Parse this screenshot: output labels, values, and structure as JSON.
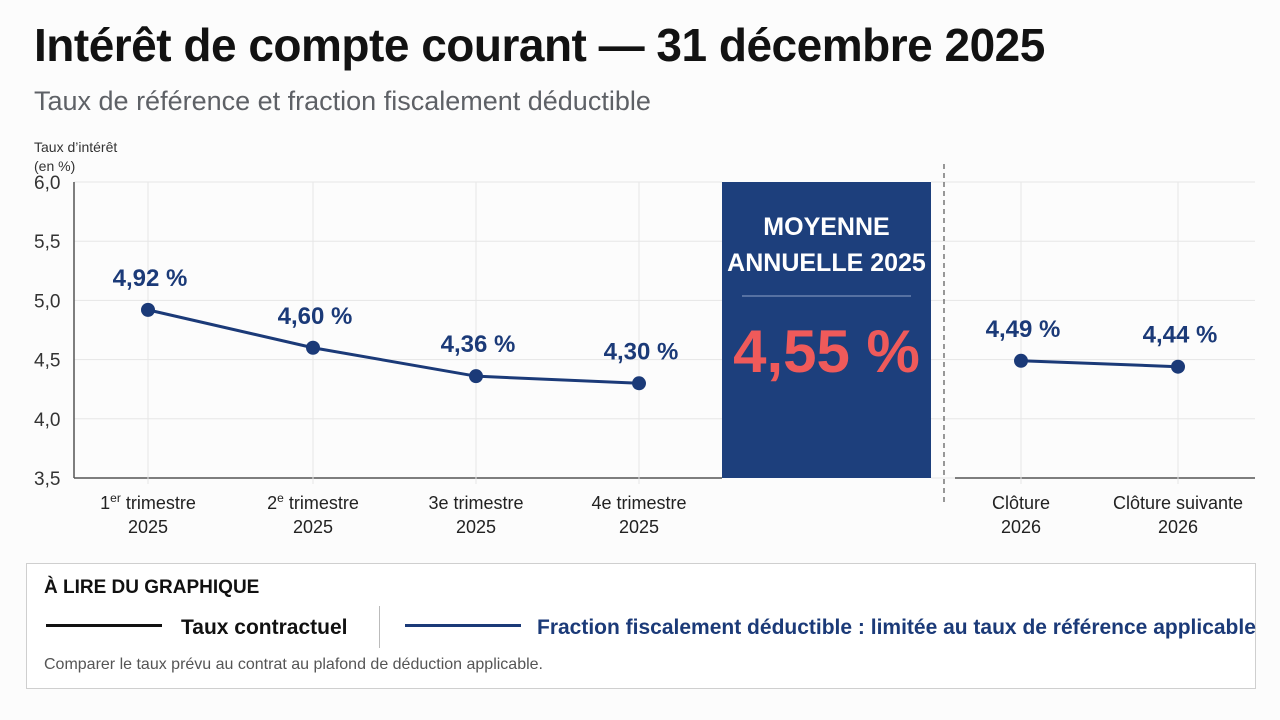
{
  "title": "Intérêt de compte courant — 31 décembre 2025",
  "subtitle": "Taux de référence et fraction fiscalement déductible",
  "chart_data": {
    "type": "line",
    "ylabel_lines": [
      "Taux d’intérêt",
      "(en %)"
    ],
    "ylim": [
      3.5,
      6.0
    ],
    "y_ticks": [
      "6,0",
      "5,5",
      "5,0",
      "4,5",
      "4,0",
      "3,5"
    ],
    "grid": true,
    "panels": [
      {
        "categories": [
          {
            "line1": "1",
            "sup": "er",
            "line1_rest": " trimestre",
            "line2": "2025"
          },
          {
            "line1": "2",
            "sup": "e",
            "line1_rest": " trimestre",
            "line2": "2025"
          },
          {
            "line1": "3e trimestre",
            "sup": "",
            "line1_rest": "",
            "line2": "2025"
          },
          {
            "line1": "4e trimestre",
            "sup": "",
            "line1_rest": "",
            "line2": "2025"
          }
        ],
        "values": [
          4.92,
          4.6,
          4.36,
          4.3
        ],
        "labels": [
          "4,92 %",
          "4,60 %",
          "4,36 %",
          "4,30 %"
        ]
      },
      {
        "categories": [
          {
            "line1": "Clôture",
            "sup": "",
            "line1_rest": "",
            "line2": "2026"
          },
          {
            "line1": "Clôture suivante",
            "sup": "",
            "line1_rest": "",
            "line2": "2026"
          }
        ],
        "values": [
          4.49,
          4.44
        ],
        "labels": [
          "4,49 %",
          "4,44 %"
        ]
      }
    ],
    "highlight": {
      "title_lines": [
        "MOYENNE",
        "ANNUELLE 2025"
      ],
      "value": 4.55,
      "value_label": "4,55 %"
    },
    "colors": {
      "series": "#1b3a78",
      "highlight_bg": "#1d3f7c",
      "highlight_value": "#ef5a5a",
      "label": "#1b3a78"
    }
  },
  "legend": {
    "heading": "À LIRE DU GRAPHIQUE",
    "items": [
      {
        "label": "Taux contractuel",
        "color": "#111111"
      },
      {
        "label": "Fraction fiscalement déductible : limitée au taux de référence applicable",
        "color": "#1b3a78"
      }
    ],
    "note": "Comparer le taux prévu au contrat au plafond de déduction applicable."
  }
}
